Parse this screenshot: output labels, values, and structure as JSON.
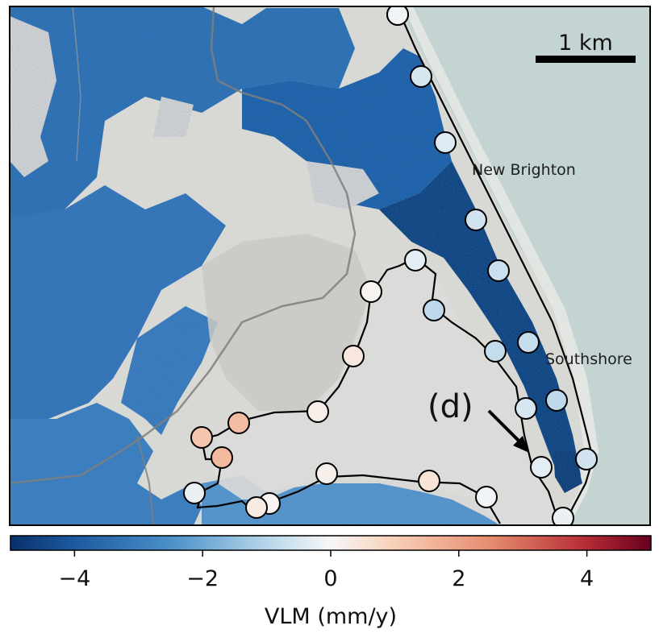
{
  "map": {
    "place_labels": [
      "New Brighton",
      "Southshore"
    ],
    "annotation": "(d)",
    "scale_bar": {
      "label": "1 km"
    }
  },
  "colorbar": {
    "label": "VLM (mm/y)",
    "range": [
      -5,
      5
    ],
    "ticks": [
      -4,
      -2,
      0,
      2,
      4
    ],
    "tick_labels": [
      "−4",
      "−2",
      "0",
      "2",
      "4"
    ],
    "colors": [
      "#08306b",
      "#2166ac",
      "#6aa8d6",
      "#f7f7f7",
      "#f4a582",
      "#d6604d",
      "#67001f"
    ]
  },
  "colors": {
    "land": "#d9d9d6",
    "ocean": "#c5d5d4",
    "vlm_dark": "#0a3f80",
    "vlm_mid": "#2a6db3",
    "vlm_light": "#4a8cc8",
    "estuary_outline": "#000000",
    "roads": "#8a8a8a"
  },
  "stations": [
    {
      "id": 1,
      "vlm": -0.6
    },
    {
      "id": 2,
      "vlm": -0.5
    },
    {
      "id": 3,
      "vlm": -0.4
    },
    {
      "id": 4,
      "vlm": -0.6
    },
    {
      "id": 5,
      "vlm": -0.7
    },
    {
      "id": 6,
      "vlm": -0.8
    },
    {
      "id": 7,
      "vlm": -0.9
    },
    {
      "id": 8,
      "vlm": -0.6
    },
    {
      "id": 9,
      "vlm": -0.2
    },
    {
      "id": 10,
      "vlm": -0.3
    },
    {
      "id": 11,
      "vlm": -0.9
    },
    {
      "id": 12,
      "vlm": -0.8
    },
    {
      "id": 13,
      "vlm": -0.5
    },
    {
      "id": 14,
      "vlm": -0.3
    },
    {
      "id": 15,
      "vlm": -0.1
    },
    {
      "id": 16,
      "vlm": 0.5
    },
    {
      "id": 17,
      "vlm": 0.2
    },
    {
      "id": 18,
      "vlm": 0.1
    },
    {
      "id": 19,
      "vlm": 0.3
    },
    {
      "id": 20,
      "vlm": -0.2
    },
    {
      "id": 21,
      "vlm": 1.2
    },
    {
      "id": 22,
      "vlm": 1.5
    },
    {
      "id": 23,
      "vlm": 1.4
    },
    {
      "id": 24,
      "vlm": 0.2
    },
    {
      "id": 25,
      "vlm": 0.4
    },
    {
      "id": 26,
      "vlm": 0.1
    },
    {
      "id": 27,
      "vlm": -0.1
    }
  ]
}
